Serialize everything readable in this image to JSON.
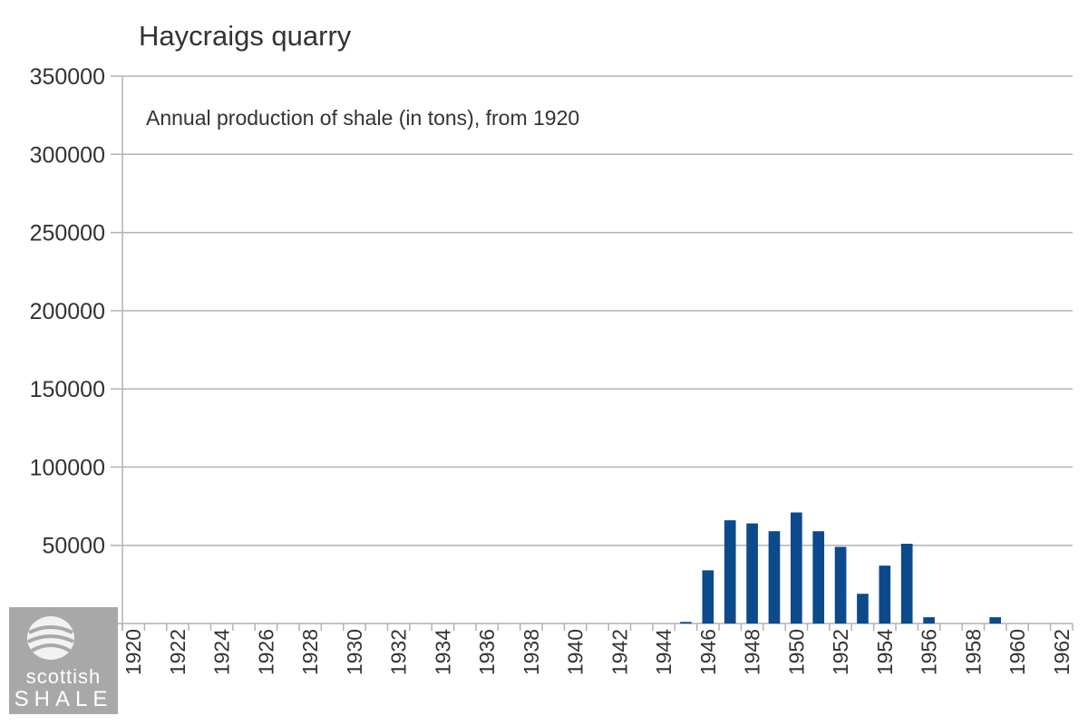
{
  "chart_data": {
    "type": "bar",
    "title": "Haycraigs quarry",
    "subtitle": "Annual production of shale (in tons), from 1920",
    "xlabel": "",
    "ylabel": "",
    "ylim": [
      0,
      350000
    ],
    "yticks": [
      "0",
      "50000",
      "100000",
      "150000",
      "200000",
      "250000",
      "300000",
      "350000"
    ],
    "grid": true,
    "legend": "none",
    "bar_color": "#0d4a8c",
    "categories": [
      "1920",
      "1921",
      "1922",
      "1923",
      "1924",
      "1925",
      "1926",
      "1927",
      "1928",
      "1929",
      "1930",
      "1931",
      "1932",
      "1933",
      "1934",
      "1935",
      "1936",
      "1937",
      "1938",
      "1939",
      "1940",
      "1941",
      "1942",
      "1943",
      "1944",
      "1945",
      "1946",
      "1947",
      "1948",
      "1949",
      "1950",
      "1951",
      "1952",
      "1953",
      "1954",
      "1955",
      "1956",
      "1957",
      "1958",
      "1959",
      "1960",
      "1961",
      "1962"
    ],
    "tick_labels": [
      "1920",
      "1922",
      "1924",
      "1926",
      "1928",
      "1930",
      "1932",
      "1934",
      "1936",
      "1938",
      "1940",
      "1942",
      "1944",
      "1946",
      "1948",
      "1950",
      "1952",
      "1954",
      "1956",
      "1958",
      "1960",
      "1962"
    ],
    "values": [
      0,
      0,
      0,
      0,
      0,
      0,
      0,
      0,
      0,
      0,
      0,
      0,
      0,
      0,
      0,
      0,
      0,
      0,
      0,
      0,
      0,
      0,
      0,
      0,
      0,
      1000,
      34000,
      66000,
      64000,
      59000,
      71000,
      59000,
      49000,
      19000,
      37000,
      51000,
      4000,
      0,
      0,
      4000,
      0,
      0,
      0
    ]
  },
  "logo": {
    "line1": "scottish",
    "line2": "SHALE"
  }
}
